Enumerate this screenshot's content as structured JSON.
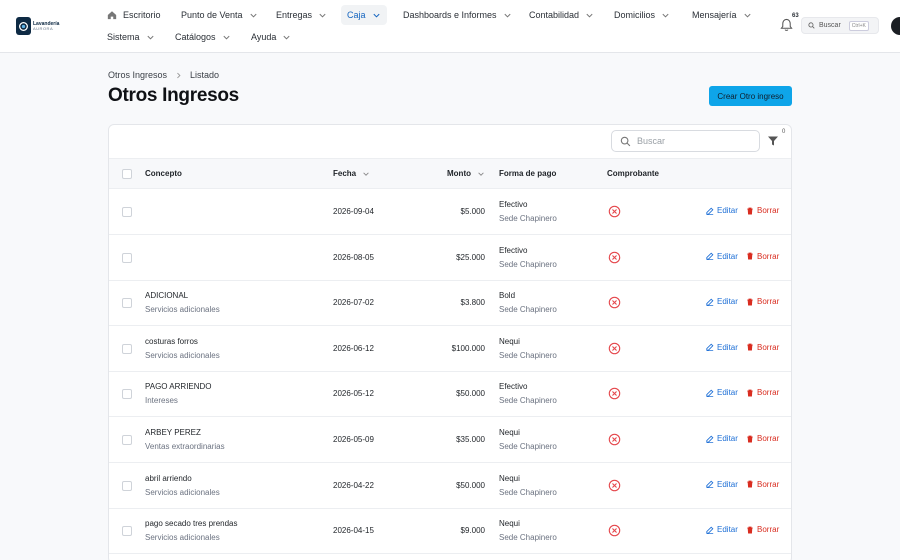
{
  "brand": {
    "line1": "Lavandería",
    "line2": "AURORA"
  },
  "nav": {
    "row1": [
      {
        "label": "Escritorio"
      },
      {
        "label": "Punto de Venta"
      },
      {
        "label": "Entregas"
      },
      {
        "label": "Caja"
      },
      {
        "label": "Dashboards e Informes"
      },
      {
        "label": "Contabilidad"
      },
      {
        "label": "Domicilios"
      },
      {
        "label": "Mensajería"
      }
    ],
    "row2": [
      {
        "label": "Sistema"
      },
      {
        "label": "Catálogos"
      },
      {
        "label": "Ayuda"
      }
    ],
    "active": "Caja",
    "notifications_count": "63",
    "search_label": "Buscar",
    "search_shortcut": "Ctrl+K"
  },
  "breadcrumb": [
    "Otros Ingresos",
    "Listado"
  ],
  "page_title": "Otros Ingresos",
  "create_button": "Crear Otro ingreso",
  "table": {
    "search_placeholder": "Buscar",
    "filter_count": "0",
    "columns": {
      "concepto": "Concepto",
      "fecha": "Fecha",
      "monto": "Monto",
      "forma_pago": "Forma de pago",
      "comprobante": "Comprobante"
    },
    "edit_label": "Editar",
    "delete_label": "Borrar",
    "rows": [
      {
        "concepto": "",
        "categoria": "",
        "fecha": "2026-09-04",
        "monto": "$5.000",
        "pago": "Efectivo",
        "sede": "Sede Chapinero"
      },
      {
        "concepto": "",
        "categoria": "",
        "fecha": "2026-08-05",
        "monto": "$25.000",
        "pago": "Efectivo",
        "sede": "Sede Chapinero"
      },
      {
        "concepto": "ADICIONAL",
        "categoria": "Servicios adicionales",
        "fecha": "2026-07-02",
        "monto": "$3.800",
        "pago": "Bold",
        "sede": "Sede Chapinero"
      },
      {
        "concepto": "costuras forros",
        "categoria": "Servicios adicionales",
        "fecha": "2026-06-12",
        "monto": "$100.000",
        "pago": "Nequi",
        "sede": "Sede Chapinero"
      },
      {
        "concepto": "PAGO ARRIENDO",
        "categoria": "Intereses",
        "fecha": "2026-05-12",
        "monto": "$50.000",
        "pago": "Efectivo",
        "sede": "Sede Chapinero"
      },
      {
        "concepto": "ARBEY PEREZ",
        "categoria": "Ventas extraordinarias",
        "fecha": "2026-05-09",
        "monto": "$35.000",
        "pago": "Nequi",
        "sede": "Sede Chapinero"
      },
      {
        "concepto": "abril arriendo",
        "categoria": "Servicios adicionales",
        "fecha": "2026-04-22",
        "monto": "$50.000",
        "pago": "Nequi",
        "sede": "Sede Chapinero"
      },
      {
        "concepto": "pago secado tres prendas",
        "categoria": "Servicios adicionales",
        "fecha": "2026-04-15",
        "monto": "$9.000",
        "pago": "Nequi",
        "sede": "Sede Chapinero"
      }
    ]
  },
  "colors": {
    "accent": "#0ea5e9",
    "link": "#1d6fd6",
    "danger": "#d92d20"
  }
}
